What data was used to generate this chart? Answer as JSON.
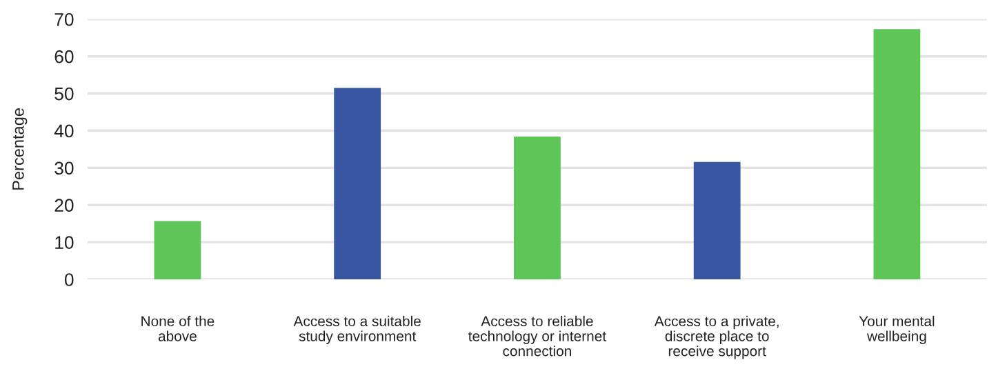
{
  "chart_data": {
    "type": "bar",
    "ylabel": "Percentage",
    "categories": [
      "None of the\nabove",
      "Access to a suitable\nstudy environment",
      "Access to reliable\ntechnology or internet\nconnection",
      "Access to a private,\ndiscrete place to\nreceive support",
      "Your mental\nwellbeing"
    ],
    "values": [
      15.7,
      51.5,
      38.4,
      31.6,
      67.3
    ],
    "colors": [
      "#5ec557",
      "#3857a0",
      "#5ec557",
      "#3857a0",
      "#5ec557"
    ],
    "ylim": [
      0,
      70
    ],
    "yticks": [
      0,
      10,
      20,
      30,
      40,
      50,
      60,
      70
    ],
    "grid": "y"
  }
}
